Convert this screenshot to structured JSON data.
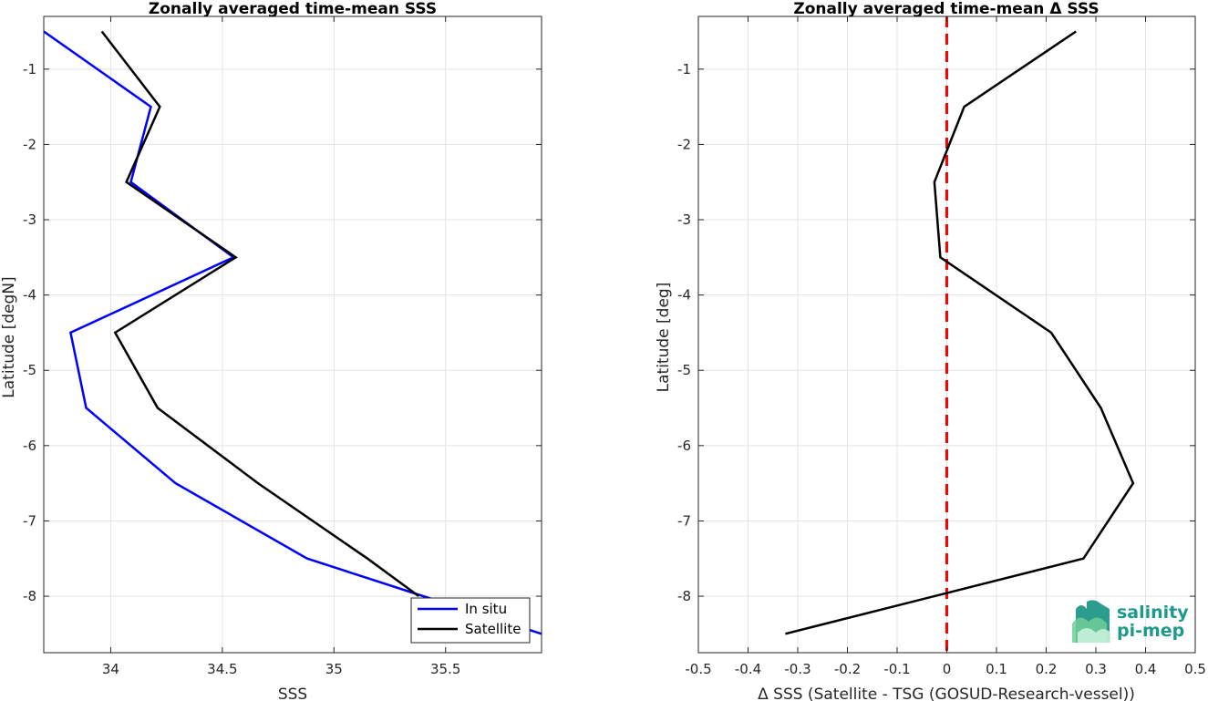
{
  "logo": {
    "line1": "salinity",
    "line2": "pi-mep"
  },
  "chart_data": [
    {
      "type": "line",
      "title": "Zonally averaged time-mean SSS",
      "xlabel": "SSS",
      "ylabel": "Latitude [degN]",
      "xlim": [
        33.7,
        35.93
      ],
      "ylim": [
        -8.75,
        -0.3
      ],
      "xticks": [
        34,
        34.5,
        35,
        35.5
      ],
      "xtick_labels": [
        "34",
        "34.5",
        "35",
        "35.5"
      ],
      "yticks": [
        -1,
        -2,
        -3,
        -4,
        -5,
        -6,
        -7,
        -8
      ],
      "ytick_labels": [
        "-1",
        "-2",
        "-3",
        "-4",
        "-5",
        "-6",
        "-7",
        "-8"
      ],
      "grid": true,
      "legend": "bottom-right",
      "series": [
        {
          "name": "In situ",
          "color": "#0000ff",
          "x": [
            33.7,
            34.18,
            34.09,
            34.55,
            33.82,
            33.89,
            34.29,
            34.88,
            35.4,
            35.93
          ],
          "y": [
            -0.5,
            -1.5,
            -2.5,
            -3.5,
            -4.5,
            -5.5,
            -6.5,
            -7.5,
            -8.0,
            -8.5
          ]
        },
        {
          "name": "Satellite",
          "color": "#000000",
          "x": [
            33.96,
            34.22,
            34.07,
            34.56,
            34.02,
            34.21,
            34.66,
            35.15,
            35.38
          ],
          "y": [
            -0.5,
            -1.5,
            -2.5,
            -3.5,
            -4.5,
            -5.5,
            -6.5,
            -7.5,
            -8.0
          ]
        }
      ]
    },
    {
      "type": "line",
      "title": "Zonally averaged time-mean Δ SSS",
      "xlabel": "Δ SSS (Satellite - TSG (GOSUD-Research-vessel))",
      "ylabel": "Latitude [deg]",
      "xlim": [
        -0.5,
        0.5
      ],
      "ylim": [
        -8.75,
        -0.3
      ],
      "xticks": [
        -0.5,
        -0.4,
        -0.3,
        -0.2,
        -0.1,
        0,
        0.1,
        0.2,
        0.3,
        0.4,
        0.5
      ],
      "xtick_labels": [
        "-0.5",
        "-0.4",
        "-0.3",
        "-0.2",
        "-0.1",
        "0",
        "0.1",
        "0.2",
        "0.3",
        "0.4",
        "0.5"
      ],
      "yticks": [
        -1,
        -2,
        -3,
        -4,
        -5,
        -6,
        -7,
        -8
      ],
      "ytick_labels": [
        "-1",
        "-2",
        "-3",
        "-4",
        "-5",
        "-6",
        "-7",
        "-8"
      ],
      "grid": true,
      "reference_line": {
        "x": 0,
        "color": "#ff0000",
        "style": "dashed"
      },
      "series": [
        {
          "color": "#000000",
          "x": [
            0.26,
            0.035,
            -0.025,
            -0.013,
            0.21,
            0.31,
            0.375,
            0.275,
            -0.325
          ],
          "y": [
            -0.5,
            -1.5,
            -2.5,
            -3.5,
            -4.5,
            -5.5,
            -6.5,
            -7.5,
            -8.5
          ]
        }
      ]
    }
  ]
}
